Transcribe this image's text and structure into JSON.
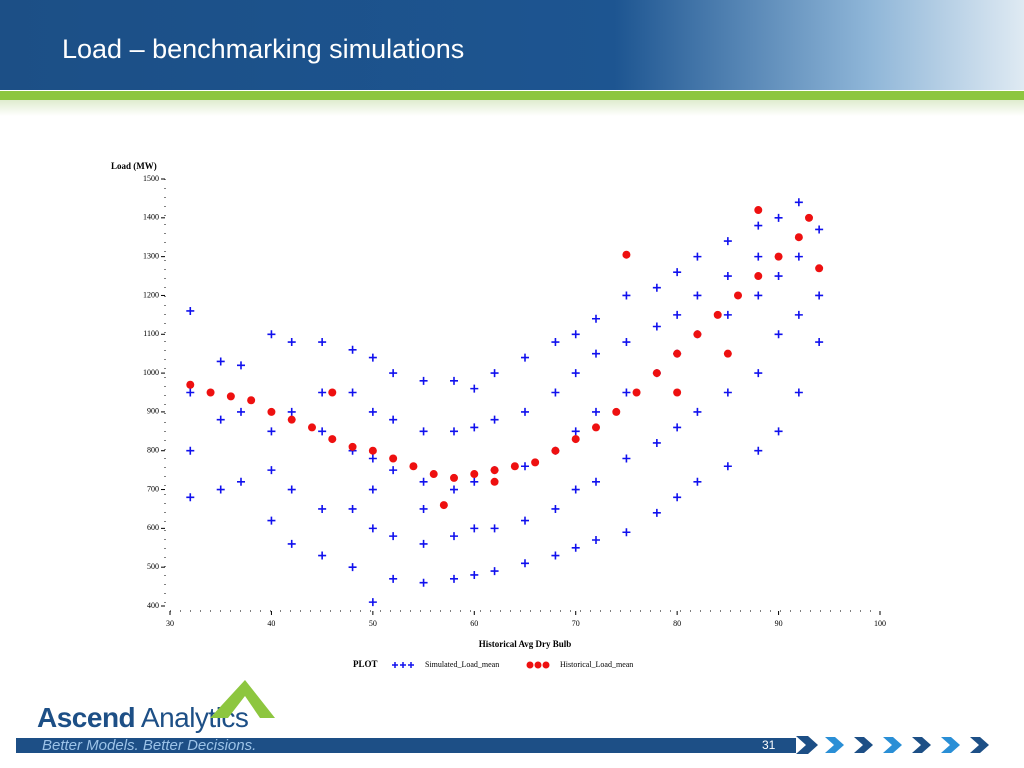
{
  "slide": {
    "title": "Load – benchmarking simulations",
    "logo_bold": "Ascend",
    "logo_light": "Analytics",
    "tagline": "Better Models. Better Decisions.",
    "page_number": "31"
  },
  "chart_data": {
    "type": "scatter",
    "y_label": "Load (MW)",
    "x_label": "Historical Avg Dry Bulb",
    "legend_title": "PLOT",
    "xlim": [
      30,
      100
    ],
    "xticks": [
      30,
      40,
      50,
      60,
      70,
      80,
      90,
      100
    ],
    "ylim": [
      400,
      1500
    ],
    "yticks": [
      400,
      500,
      600,
      700,
      800,
      900,
      1000,
      1100,
      1200,
      1300,
      1400,
      1500
    ],
    "grid": false,
    "series": [
      {
        "name": "Simulated_Load_mean",
        "color": "#1010ee",
        "marker": "plus",
        "x": [
          32,
          32,
          32,
          32,
          35,
          35,
          35,
          37,
          37,
          37,
          40,
          40,
          40,
          40,
          42,
          42,
          42,
          42,
          45,
          45,
          45,
          45,
          45,
          48,
          48,
          48,
          48,
          48,
          50,
          50,
          50,
          50,
          50,
          50,
          52,
          52,
          52,
          52,
          52,
          55,
          55,
          55,
          55,
          55,
          55,
          58,
          58,
          58,
          58,
          58,
          60,
          60,
          60,
          60,
          60,
          62,
          62,
          62,
          62,
          62,
          65,
          65,
          65,
          65,
          65,
          68,
          68,
          68,
          68,
          68,
          70,
          70,
          70,
          70,
          70,
          72,
          72,
          72,
          72,
          72,
          75,
          75,
          75,
          75,
          75,
          78,
          78,
          78,
          78,
          78,
          80,
          80,
          80,
          80,
          80,
          82,
          82,
          82,
          82,
          82,
          85,
          85,
          85,
          85,
          85,
          88,
          88,
          88,
          88,
          88,
          90,
          90,
          90,
          90,
          92,
          92,
          92,
          92,
          94,
          94,
          94
        ],
        "values": [
          680,
          1160,
          950,
          800,
          700,
          1030,
          880,
          720,
          1020,
          900,
          620,
          1100,
          850,
          750,
          560,
          1080,
          900,
          700,
          530,
          1080,
          850,
          650,
          950,
          500,
          1060,
          800,
          650,
          950,
          410,
          1040,
          780,
          600,
          900,
          700,
          470,
          1000,
          750,
          580,
          880,
          460,
          980,
          720,
          560,
          850,
          650,
          470,
          980,
          700,
          580,
          850,
          480,
          960,
          720,
          600,
          860,
          490,
          1000,
          750,
          600,
          880,
          510,
          1040,
          760,
          620,
          900,
          530,
          1080,
          800,
          650,
          950,
          550,
          1100,
          850,
          700,
          1000,
          570,
          1140,
          900,
          720,
          1050,
          590,
          1200,
          950,
          780,
          1080,
          640,
          1220,
          1000,
          820,
          1120,
          680,
          1260,
          1050,
          860,
          1150,
          720,
          1300,
          1100,
          900,
          1200,
          760,
          1340,
          1150,
          950,
          1250,
          800,
          1380,
          1200,
          1000,
          1300,
          850,
          1400,
          1250,
          1100,
          950,
          1440,
          1300,
          1150,
          1080,
          1370,
          1200
        ]
      },
      {
        "name": "Historical_Load_mean",
        "color": "#ee1010",
        "marker": "dot",
        "x": [
          32,
          34,
          36,
          38,
          40,
          42,
          44,
          46,
          48,
          50,
          52,
          54,
          56,
          58,
          60,
          62,
          64,
          66,
          68,
          70,
          72,
          74,
          75,
          76,
          78,
          80,
          82,
          84,
          86,
          88,
          88,
          90,
          92,
          93,
          94,
          57,
          46,
          62,
          80,
          85
        ],
        "values": [
          970,
          950,
          940,
          930,
          900,
          880,
          860,
          830,
          810,
          800,
          780,
          760,
          740,
          730,
          740,
          750,
          760,
          770,
          800,
          830,
          860,
          900,
          1305,
          950,
          1000,
          1050,
          1100,
          1150,
          1200,
          1250,
          1420,
          1300,
          1350,
          1400,
          1270,
          660,
          950,
          720,
          950,
          1050
        ]
      }
    ]
  }
}
